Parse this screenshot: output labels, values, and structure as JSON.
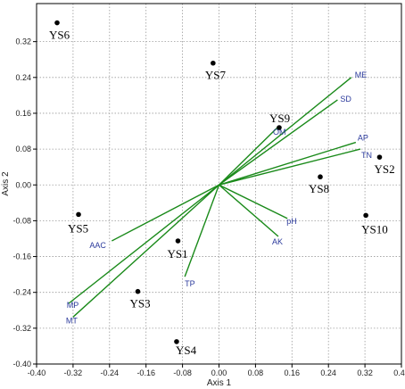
{
  "chart_data": {
    "type": "scatter",
    "xlabel": "Axis 1",
    "ylabel": "Axis 2",
    "xlim": [
      -0.4,
      0.4
    ],
    "ylim": [
      -0.4,
      0.4
    ],
    "xticks": [
      "-0.40",
      "-0.32",
      "-0.24",
      "-0.16",
      "-0.08",
      "0.00",
      "0.08",
      "0.16",
      "0.24",
      "0.32",
      "0.40"
    ],
    "yticks": [
      "-0.40",
      "-0.32",
      "-0.24",
      "-0.16",
      "-0.08",
      "0.00",
      "0.08",
      "0.16",
      "0.24",
      "0.32"
    ],
    "grid": "dotted",
    "point_color": "#000000",
    "vector_color": "#1a8a1a",
    "vector_label_color": "#2b3a9c",
    "points": [
      {
        "label": "YS1",
        "x": -0.09,
        "y": -0.125
      },
      {
        "label": "YS2",
        "x": 0.352,
        "y": 0.062
      },
      {
        "label": "YS3",
        "x": -0.178,
        "y": -0.238
      },
      {
        "label": "YS4",
        "x": -0.093,
        "y": -0.35
      },
      {
        "label": "YS5",
        "x": -0.308,
        "y": -0.066
      },
      {
        "label": "YS6",
        "x": -0.355,
        "y": 0.362
      },
      {
        "label": "YS7",
        "x": -0.013,
        "y": 0.272
      },
      {
        "label": "YS8",
        "x": 0.222,
        "y": 0.018
      },
      {
        "label": "YS9",
        "x": 0.132,
        "y": 0.128
      },
      {
        "label": "YS10",
        "x": 0.322,
        "y": -0.068
      }
    ],
    "vectors": [
      {
        "label": "ME",
        "x": 0.29,
        "y": 0.24
      },
      {
        "label": "SD",
        "x": 0.26,
        "y": 0.19
      },
      {
        "label": "OM",
        "x": 0.13,
        "y": 0.13
      },
      {
        "label": "AP",
        "x": 0.3,
        "y": 0.095
      },
      {
        "label": "TN",
        "x": 0.31,
        "y": 0.08
      },
      {
        "label": "pH",
        "x": 0.15,
        "y": -0.075
      },
      {
        "label": "AK",
        "x": 0.13,
        "y": -0.115
      },
      {
        "label": "TP",
        "x": -0.075,
        "y": -0.205
      },
      {
        "label": "AAC",
        "x": -0.235,
        "y": -0.125
      },
      {
        "label": "MP",
        "x": -0.33,
        "y": -0.265
      },
      {
        "label": "MT",
        "x": -0.32,
        "y": -0.295
      }
    ]
  }
}
